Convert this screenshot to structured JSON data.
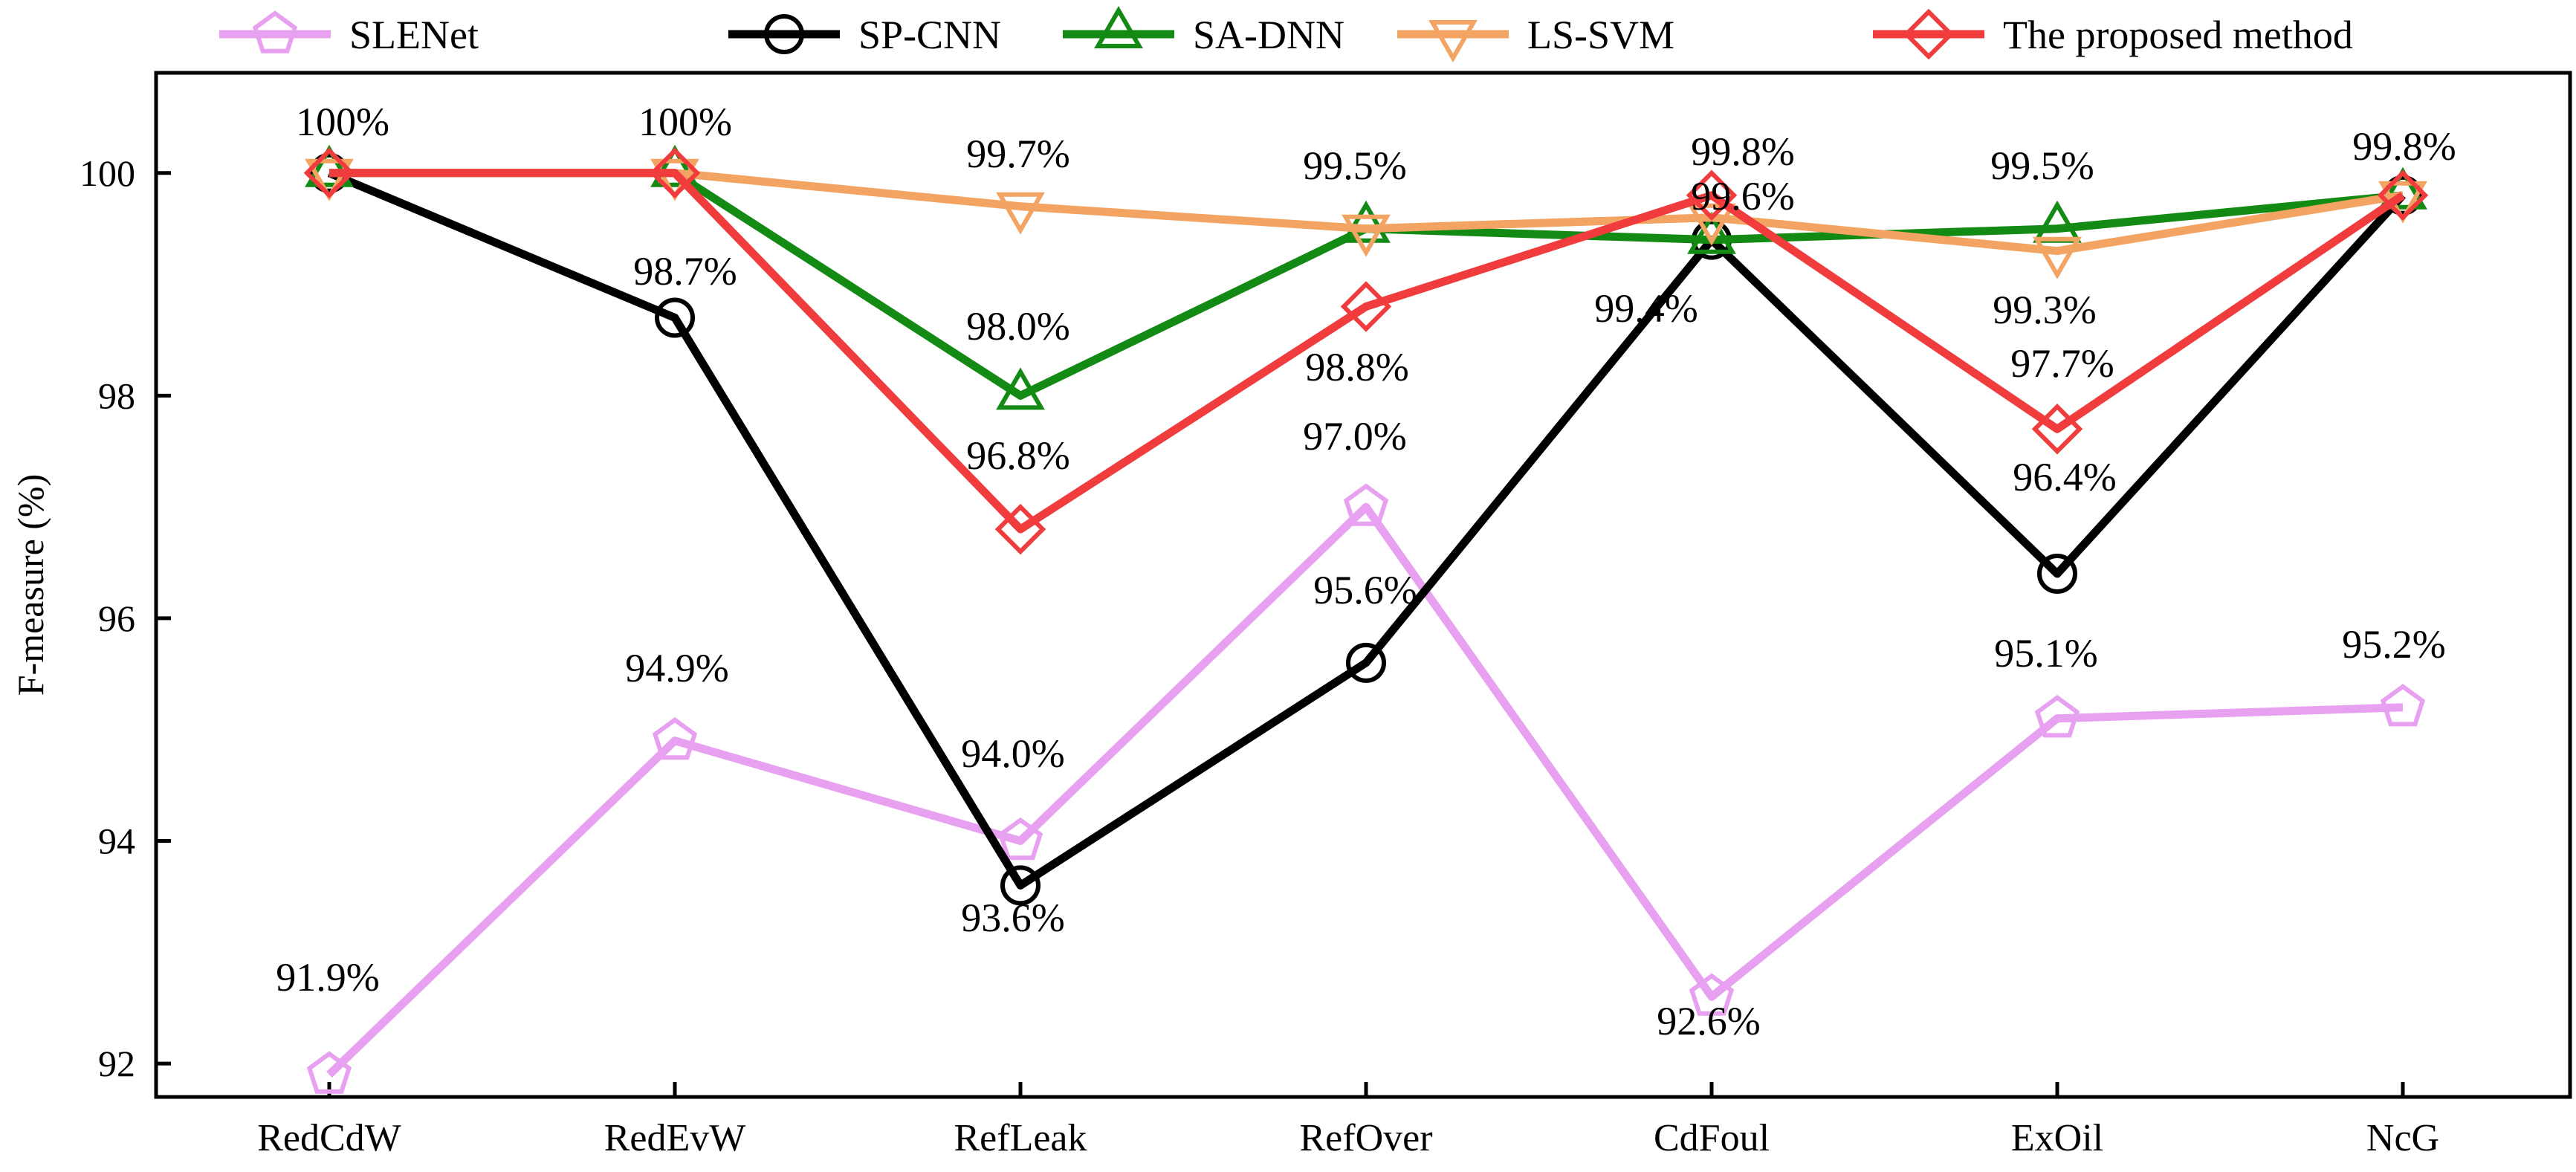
{
  "chart_data": {
    "type": "line",
    "title": "",
    "xlabel": "",
    "ylabel": "F-measure (%)",
    "ylim": [
      91.7,
      100.9
    ],
    "yticks": [
      92,
      94,
      96,
      98,
      100
    ],
    "ytick_labels": [
      "92",
      "94",
      "96",
      "98",
      "100"
    ],
    "categories": [
      "RedCdW",
      "RedEvW",
      "RefLeak",
      "RefOver",
      "CdFoul",
      "ExOil",
      "NcG"
    ],
    "grid": false,
    "legend_position": "top",
    "series": [
      {
        "name": "SLENet",
        "color": "#e8a0f0",
        "marker": "pentagon",
        "values": [
          91.9,
          94.9,
          94.0,
          97.0,
          92.6,
          95.1,
          95.2
        ],
        "labels": [
          "91.9%",
          "94.9%",
          "94.0%",
          "97.0%",
          "92.6%",
          "95.1%",
          "95.2%"
        ]
      },
      {
        "name": "SP-CNN",
        "color": "#000000",
        "marker": "circle",
        "values": [
          100,
          98.7,
          93.6,
          95.6,
          99.4,
          96.4,
          99.8
        ],
        "labels": [
          "",
          "98.7%",
          "93.6%",
          "95.6%",
          "99.4%",
          "96.4%",
          ""
        ]
      },
      {
        "name": "SA-DNN",
        "color": "#138a13",
        "marker": "triangle-up",
        "values": [
          100,
          100,
          98.0,
          99.5,
          99.4,
          99.5,
          99.8
        ],
        "labels": [
          "",
          "",
          "98.0%",
          "99.5%",
          "",
          "99.5%",
          ""
        ]
      },
      {
        "name": "LS-SVM",
        "color": "#f3a462",
        "marker": "triangle-down",
        "values": [
          100,
          100,
          99.7,
          99.5,
          99.6,
          99.3,
          99.8
        ],
        "labels": [
          "",
          "",
          "99.7%",
          "",
          "99.6%",
          "99.3%",
          ""
        ]
      },
      {
        "name": "The proposed method",
        "color": "#f03c3c",
        "marker": "diamond",
        "values": [
          100,
          100,
          96.8,
          98.8,
          99.8,
          97.7,
          99.8
        ],
        "labels": [
          "100%",
          "100%",
          "96.8%",
          "98.8%",
          "99.8%",
          "97.7%",
          "99.8%"
        ]
      }
    ]
  }
}
